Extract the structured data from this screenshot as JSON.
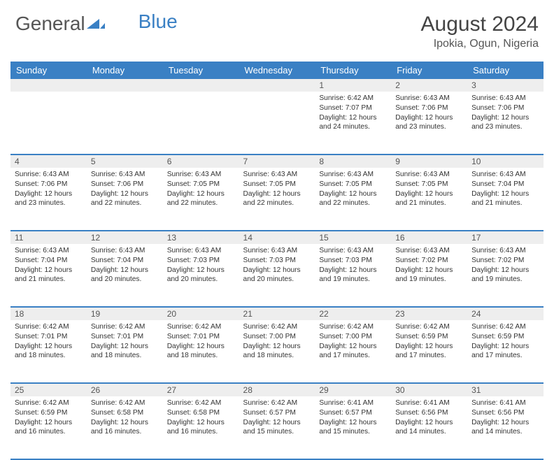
{
  "brand": {
    "part1": "General",
    "part2": "Blue"
  },
  "title": "August 2024",
  "location": "Ipokia, Ogun, Nigeria",
  "colors": {
    "header_bg": "#3a80c4",
    "header_text": "#ffffff",
    "daynum_bg": "#eeeeee",
    "border": "#3a80c4",
    "body_text": "#333333",
    "title_text": "#444444"
  },
  "day_names": [
    "Sunday",
    "Monday",
    "Tuesday",
    "Wednesday",
    "Thursday",
    "Friday",
    "Saturday"
  ],
  "weeks": [
    [
      {
        "n": "",
        "sr": "",
        "ss": "",
        "dl": ""
      },
      {
        "n": "",
        "sr": "",
        "ss": "",
        "dl": ""
      },
      {
        "n": "",
        "sr": "",
        "ss": "",
        "dl": ""
      },
      {
        "n": "",
        "sr": "",
        "ss": "",
        "dl": ""
      },
      {
        "n": "1",
        "sr": "6:42 AM",
        "ss": "7:07 PM",
        "dl": "12 hours and 24 minutes."
      },
      {
        "n": "2",
        "sr": "6:43 AM",
        "ss": "7:06 PM",
        "dl": "12 hours and 23 minutes."
      },
      {
        "n": "3",
        "sr": "6:43 AM",
        "ss": "7:06 PM",
        "dl": "12 hours and 23 minutes."
      }
    ],
    [
      {
        "n": "4",
        "sr": "6:43 AM",
        "ss": "7:06 PM",
        "dl": "12 hours and 23 minutes."
      },
      {
        "n": "5",
        "sr": "6:43 AM",
        "ss": "7:06 PM",
        "dl": "12 hours and 22 minutes."
      },
      {
        "n": "6",
        "sr": "6:43 AM",
        "ss": "7:05 PM",
        "dl": "12 hours and 22 minutes."
      },
      {
        "n": "7",
        "sr": "6:43 AM",
        "ss": "7:05 PM",
        "dl": "12 hours and 22 minutes."
      },
      {
        "n": "8",
        "sr": "6:43 AM",
        "ss": "7:05 PM",
        "dl": "12 hours and 22 minutes."
      },
      {
        "n": "9",
        "sr": "6:43 AM",
        "ss": "7:05 PM",
        "dl": "12 hours and 21 minutes."
      },
      {
        "n": "10",
        "sr": "6:43 AM",
        "ss": "7:04 PM",
        "dl": "12 hours and 21 minutes."
      }
    ],
    [
      {
        "n": "11",
        "sr": "6:43 AM",
        "ss": "7:04 PM",
        "dl": "12 hours and 21 minutes."
      },
      {
        "n": "12",
        "sr": "6:43 AM",
        "ss": "7:04 PM",
        "dl": "12 hours and 20 minutes."
      },
      {
        "n": "13",
        "sr": "6:43 AM",
        "ss": "7:03 PM",
        "dl": "12 hours and 20 minutes."
      },
      {
        "n": "14",
        "sr": "6:43 AM",
        "ss": "7:03 PM",
        "dl": "12 hours and 20 minutes."
      },
      {
        "n": "15",
        "sr": "6:43 AM",
        "ss": "7:03 PM",
        "dl": "12 hours and 19 minutes."
      },
      {
        "n": "16",
        "sr": "6:43 AM",
        "ss": "7:02 PM",
        "dl": "12 hours and 19 minutes."
      },
      {
        "n": "17",
        "sr": "6:43 AM",
        "ss": "7:02 PM",
        "dl": "12 hours and 19 minutes."
      }
    ],
    [
      {
        "n": "18",
        "sr": "6:42 AM",
        "ss": "7:01 PM",
        "dl": "12 hours and 18 minutes."
      },
      {
        "n": "19",
        "sr": "6:42 AM",
        "ss": "7:01 PM",
        "dl": "12 hours and 18 minutes."
      },
      {
        "n": "20",
        "sr": "6:42 AM",
        "ss": "7:01 PM",
        "dl": "12 hours and 18 minutes."
      },
      {
        "n": "21",
        "sr": "6:42 AM",
        "ss": "7:00 PM",
        "dl": "12 hours and 18 minutes."
      },
      {
        "n": "22",
        "sr": "6:42 AM",
        "ss": "7:00 PM",
        "dl": "12 hours and 17 minutes."
      },
      {
        "n": "23",
        "sr": "6:42 AM",
        "ss": "6:59 PM",
        "dl": "12 hours and 17 minutes."
      },
      {
        "n": "24",
        "sr": "6:42 AM",
        "ss": "6:59 PM",
        "dl": "12 hours and 17 minutes."
      }
    ],
    [
      {
        "n": "25",
        "sr": "6:42 AM",
        "ss": "6:59 PM",
        "dl": "12 hours and 16 minutes."
      },
      {
        "n": "26",
        "sr": "6:42 AM",
        "ss": "6:58 PM",
        "dl": "12 hours and 16 minutes."
      },
      {
        "n": "27",
        "sr": "6:42 AM",
        "ss": "6:58 PM",
        "dl": "12 hours and 16 minutes."
      },
      {
        "n": "28",
        "sr": "6:42 AM",
        "ss": "6:57 PM",
        "dl": "12 hours and 15 minutes."
      },
      {
        "n": "29",
        "sr": "6:41 AM",
        "ss": "6:57 PM",
        "dl": "12 hours and 15 minutes."
      },
      {
        "n": "30",
        "sr": "6:41 AM",
        "ss": "6:56 PM",
        "dl": "12 hours and 14 minutes."
      },
      {
        "n": "31",
        "sr": "6:41 AM",
        "ss": "6:56 PM",
        "dl": "12 hours and 14 minutes."
      }
    ]
  ],
  "labels": {
    "sunrise": "Sunrise:",
    "sunset": "Sunset:",
    "daylight": "Daylight:"
  }
}
